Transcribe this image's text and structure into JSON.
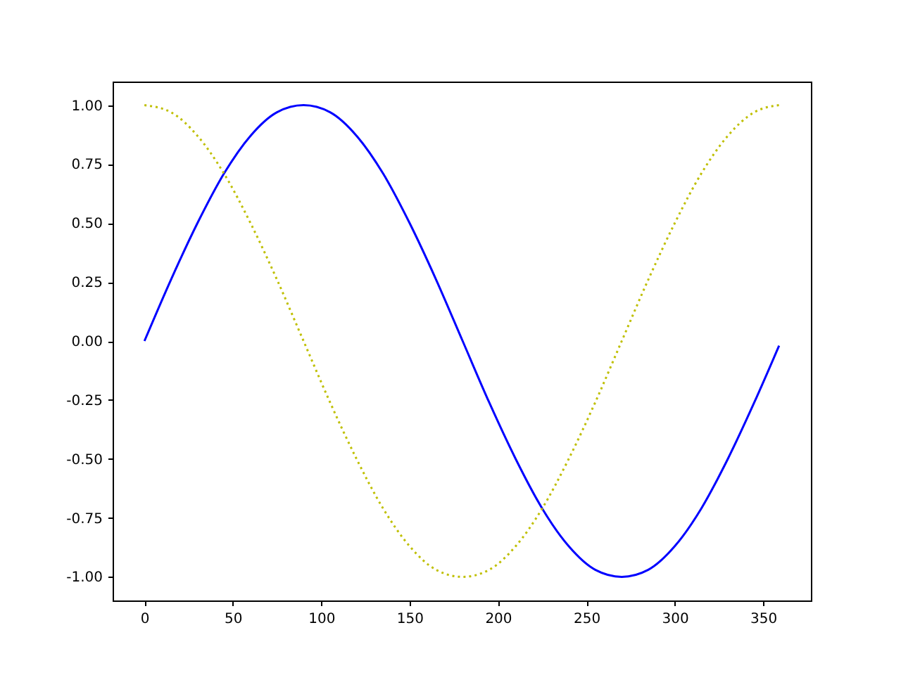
{
  "chart_data": {
    "type": "line",
    "x": [
      0,
      15,
      30,
      45,
      60,
      75,
      90,
      105,
      120,
      135,
      150,
      165,
      180,
      195,
      210,
      225,
      240,
      255,
      270,
      285,
      300,
      315,
      330,
      345,
      359
    ],
    "series": [
      {
        "color": "#0000ff",
        "line_style": "solid",
        "values": [
          0,
          0.26,
          0.5,
          0.71,
          0.87,
          0.97,
          1,
          0.97,
          0.87,
          0.71,
          0.5,
          0.26,
          0,
          -0.26,
          -0.5,
          -0.71,
          -0.87,
          -0.97,
          -1,
          -0.97,
          -0.87,
          -0.71,
          -0.5,
          -0.26,
          -0.02
        ]
      },
      {
        "color": "#bfbf00",
        "line_style": "dotted",
        "values": [
          1,
          0.97,
          0.87,
          0.71,
          0.5,
          0.26,
          0,
          -0.26,
          -0.5,
          -0.71,
          -0.87,
          -0.97,
          -1,
          -0.97,
          -0.87,
          -0.71,
          -0.5,
          -0.26,
          0,
          0.26,
          0.5,
          0.71,
          0.87,
          0.97,
          1
        ]
      }
    ],
    "xlim": [
      -18,
      377
    ],
    "xticks": [
      0,
      50,
      100,
      150,
      200,
      250,
      300,
      350
    ],
    "ylim": [
      -1.1,
      1.1
    ],
    "yticks": [
      {
        "value": -1,
        "label": "-1.00"
      },
      {
        "value": -0.75,
        "label": "-0.75"
      },
      {
        "value": -0.5,
        "label": "-0.50"
      },
      {
        "value": -0.25,
        "label": "-0.25"
      },
      {
        "value": 0,
        "label": "0.00"
      },
      {
        "value": 0.25,
        "label": "0.25"
      },
      {
        "value": 0.5,
        "label": "0.50"
      },
      {
        "value": 0.75,
        "label": "0.75"
      },
      {
        "value": 1,
        "label": "1.00"
      }
    ],
    "grid": false
  }
}
